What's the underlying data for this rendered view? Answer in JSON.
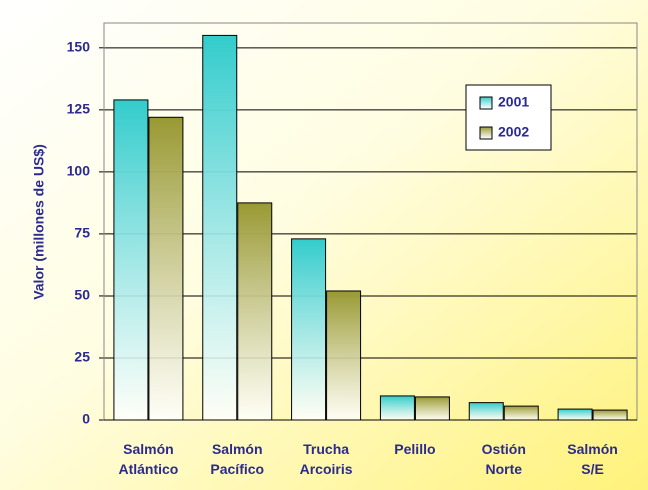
{
  "chart_data": {
    "type": "bar",
    "y_label": "Valor (millones de US$)",
    "categories": [
      "Salmón Atlántico",
      "Salmón Pacífico",
      "Trucha Arcoiris",
      "Pelillo",
      "Ostión Norte",
      "Salmón S/E"
    ],
    "series": [
      {
        "name": "2001",
        "color": "#33cccc",
        "values": [
          129,
          155,
          73,
          9.7,
          7,
          4.4
        ]
      },
      {
        "name": "2002",
        "color": "#999933",
        "values": [
          122,
          87.5,
          52,
          9.3,
          5.6,
          4
        ]
      }
    ],
    "ylim": [
      0,
      160
    ],
    "yticks": [
      0,
      25,
      50,
      75,
      100,
      125,
      150
    ],
    "grid": true,
    "legend": "top-right"
  }
}
